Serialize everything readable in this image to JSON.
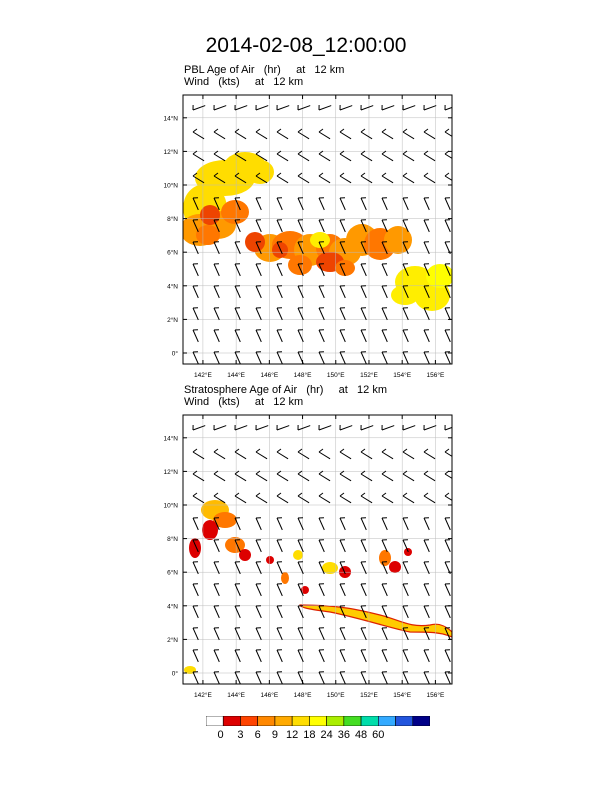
{
  "title": "2014-02-08_12:00:00",
  "panels": [
    {
      "id": "pbl",
      "label_line1": "PBL Age of Air   (hr)     at   12 km",
      "label_line2": "Wind   (kts)     at   12 km"
    },
    {
      "id": "strat",
      "label_line1": "Stratosphere Age of Air   (hr)     at   12 km",
      "label_line2": "Wind   (kts)     at   12 km"
    }
  ],
  "map": {
    "lat_ticks": [
      "14°N",
      "12°N",
      "10°N",
      "8°N",
      "6°N",
      "4°N",
      "2°N",
      "0°"
    ],
    "lon_ticks": [
      "142°E",
      "144°E",
      "146°E",
      "148°E",
      "150°E",
      "152°E",
      "154°E",
      "156°E"
    ]
  },
  "colorbar": {
    "labels": [
      "0",
      "3",
      "6",
      "9",
      "12",
      "18",
      "24",
      "36",
      "48",
      "60"
    ],
    "colors": [
      "#ffffff",
      "#dd0000",
      "#ff4400",
      "#ff8800",
      "#ffaa00",
      "#ffdd00",
      "#ffff00",
      "#aaee00",
      "#44dd22",
      "#00ddaa",
      "#33aaff",
      "#2255dd",
      "#000088"
    ]
  },
  "colors": {
    "frame": "#000000",
    "grid": "#bbbbbb",
    "wind": "#000000"
  }
}
